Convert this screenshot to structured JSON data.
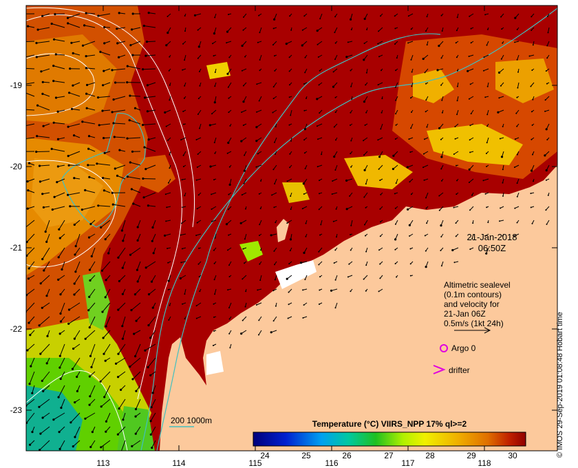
{
  "map": {
    "latitude_labels": [
      "-19",
      "-20",
      "-21",
      "-22",
      "-23"
    ],
    "longitude_labels": [
      "113",
      "114",
      "115",
      "116",
      "117",
      "118"
    ],
    "date": "21-Jan-2018",
    "time": "06:50Z",
    "altimetry_text": [
      "Altimetric sealevel",
      "(0.1m contours)",
      "and velocity for",
      "21-Jan 06Z",
      "0.5m/s (1kt 24h)"
    ],
    "argo_label": "Argo 0",
    "drifter_label": "drifter",
    "bathymetry_label": "200  1000m",
    "colorbar_title": "Temperature (°C) VIIRS_NPP 17% ql>=2",
    "colorbar_ticks": [
      "24",
      "25",
      "26",
      "27",
      "28",
      "29",
      "30"
    ],
    "credit": "© IMOS 29-Sep-2019 01:08:48 Hobart time"
  },
  "colors": {
    "land": "#fcc99c",
    "sst_hot": "#a80000",
    "sst_warm": "#cc3300",
    "sst_mid": "#e88a00",
    "sst_yellow": "#f0c800",
    "sst_green": "#78e000",
    "bathymetry": "#40c0c0",
    "argo": "#e000e0",
    "contour": "#ffffff"
  }
}
